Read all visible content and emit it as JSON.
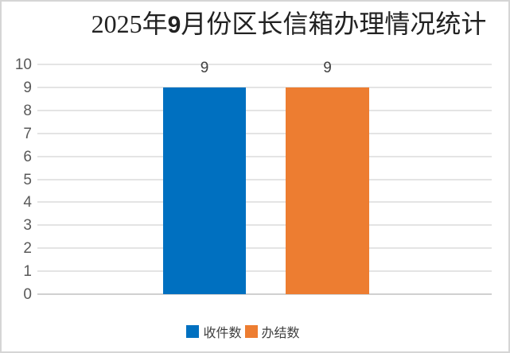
{
  "title": {
    "prefix": "2025年",
    "bold_digit": "9",
    "suffix": "月份区长信箱办理情况统计",
    "full": "2025年9月份区长信箱办理情况统计"
  },
  "chart_data": {
    "type": "bar",
    "title": "2025年9月份区长信箱办理情况统计",
    "categories": [
      ""
    ],
    "series": [
      {
        "name": "收件数",
        "values": [
          9
        ],
        "data_label": "9",
        "color": "#0070C0"
      },
      {
        "name": "办结数",
        "values": [
          9
        ],
        "data_label": "9",
        "color": "#ED7D31"
      }
    ],
    "xlabel": "",
    "ylabel": "",
    "ylim": [
      0,
      10
    ],
    "yticks": [
      0,
      1,
      2,
      3,
      4,
      5,
      6,
      7,
      8,
      9,
      10
    ],
    "grid": true,
    "legend_position": "bottom",
    "legend": [
      "收件数",
      "办结数"
    ]
  },
  "colors": {
    "series_blue": "#0070C0",
    "series_orange": "#ED7D31",
    "gridline": "#E4E4E4",
    "axis_line": "#D0D0D0",
    "axis_text": "#595959",
    "title_text": "#222222",
    "frame_border": "#D5D5D5",
    "background": "#FFFFFF"
  }
}
